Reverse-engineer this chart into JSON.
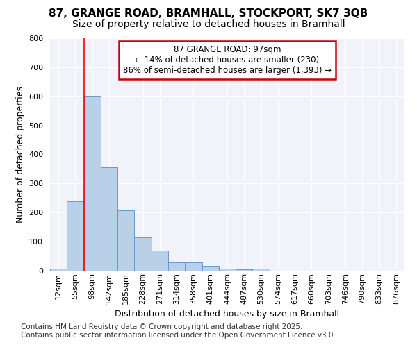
{
  "title_line1": "87, GRANGE ROAD, BRAMHALL, STOCKPORT, SK7 3QB",
  "title_line2": "Size of property relative to detached houses in Bramhall",
  "xlabel": "Distribution of detached houses by size in Bramhall",
  "ylabel": "Number of detached properties",
  "bin_labels": [
    "12sqm",
    "55sqm",
    "98sqm",
    "142sqm",
    "185sqm",
    "228sqm",
    "271sqm",
    "314sqm",
    "358sqm",
    "401sqm",
    "444sqm",
    "487sqm",
    "530sqm",
    "574sqm",
    "617sqm",
    "660sqm",
    "703sqm",
    "746sqm",
    "790sqm",
    "833sqm",
    "876sqm"
  ],
  "bar_values": [
    8,
    240,
    600,
    355,
    207,
    115,
    70,
    28,
    28,
    15,
    8,
    5,
    8,
    0,
    0,
    0,
    0,
    0,
    0,
    0,
    0
  ],
  "bar_color": "#b8d0e8",
  "bar_edge_color": "#6699cc",
  "red_line_x": 2.0,
  "annotation_text": "87 GRANGE ROAD: 97sqm\n← 14% of detached houses are smaller (230)\n86% of semi-detached houses are larger (1,393) →",
  "annotation_box_color": "#ffffff",
  "annotation_box_edge_color": "#cc0000",
  "ylim": [
    0,
    800
  ],
  "yticks": [
    0,
    100,
    200,
    300,
    400,
    500,
    600,
    700,
    800
  ],
  "bg_color": "#ffffff",
  "plot_bg_color": "#f0f4fa",
  "grid_color": "#ffffff",
  "footer_line1": "Contains HM Land Registry data © Crown copyright and database right 2025.",
  "footer_line2": "Contains public sector information licensed under the Open Government Licence v3.0.",
  "title_fontsize": 11,
  "subtitle_fontsize": 10,
  "axis_label_fontsize": 9,
  "tick_fontsize": 8,
  "annotation_fontsize": 8.5,
  "footer_fontsize": 7.5
}
